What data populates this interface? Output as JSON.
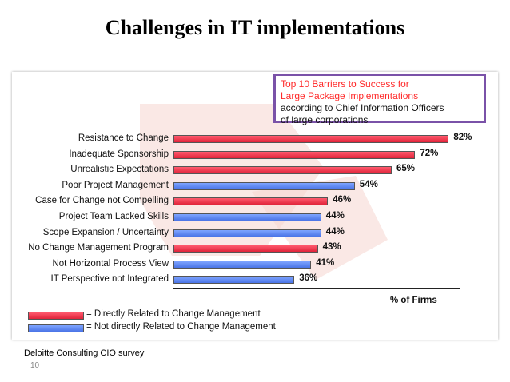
{
  "slide": {
    "title": "Challenges in IT implementations",
    "source": "Deloitte Consulting CIO survey",
    "page_number": "10"
  },
  "callout": {
    "line1": "Top 10 Barriers to Success for",
    "line2": "Large Package Implementations",
    "line3": "according to Chief Information Officers",
    "line4": "of large corporations"
  },
  "colors": {
    "related": "#e8304a",
    "not_related": "#5b84f0",
    "callout_border": "#7a52a8"
  },
  "chart_data": {
    "type": "bar",
    "orientation": "horizontal",
    "xlabel": "% of Firms",
    "xlim": [
      0,
      100
    ],
    "categories": [
      "Resistance to Change",
      "Inadequate Sponsorship",
      "Unrealistic Expectations",
      "Poor Project Management",
      "Case for Change not Compelling",
      "Project Team Lacked Skills",
      "Scope Expansion / Uncertainty",
      "No Change Management Program",
      "Not Horizontal Process View",
      "IT Perspective not Integrated"
    ],
    "values": [
      82,
      72,
      65,
      54,
      46,
      44,
      44,
      43,
      41,
      36
    ],
    "value_labels": [
      "82%",
      "72%",
      "65%",
      "54%",
      "46%",
      "44%",
      "44%",
      "43%",
      "41%",
      "36%"
    ],
    "groups": [
      "related",
      "related",
      "related",
      "not_related",
      "related",
      "not_related",
      "not_related",
      "related",
      "not_related",
      "not_related"
    ],
    "legend": [
      {
        "key": "related",
        "label": "= Directly Related to Change Management"
      },
      {
        "key": "not_related",
        "label": "= Not directly Related to Change Management"
      }
    ]
  }
}
